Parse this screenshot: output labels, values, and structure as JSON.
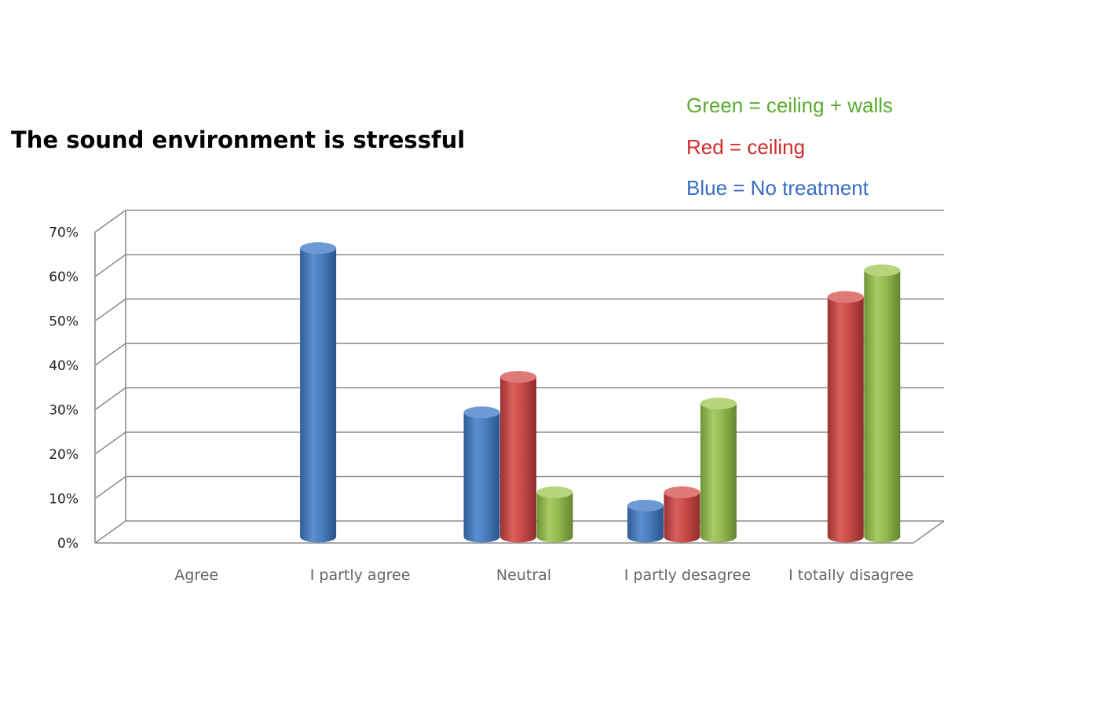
{
  "chart_data": {
    "type": "bar",
    "title": "The sound environment is stressful",
    "categories": [
      "Agree",
      "I partly agree",
      "Neutral",
      "I partly desagree",
      "I totally disagree"
    ],
    "series": [
      {
        "color": "#4a7ebf",
        "values": [
          0,
          65,
          28,
          7,
          0
        ]
      },
      {
        "color": "#c94a47",
        "values": [
          0,
          0,
          36,
          10,
          54
        ]
      },
      {
        "color": "#93b94f",
        "values": [
          0,
          0,
          10,
          30,
          60
        ]
      }
    ],
    "legend_entries": [
      {
        "label": "Green = ceiling + walls",
        "color": "#5aab2e"
      },
      {
        "label": "Red = ceiling",
        "color": "#d42a2a"
      },
      {
        "label": "Blue = No treatment",
        "color": "#3b6dc2"
      }
    ],
    "legend_position": "top-right",
    "y_tick_labels": [
      "0%",
      "10%",
      "20%",
      "30%",
      "40%",
      "50%",
      "60%",
      "70%"
    ],
    "ylim": [
      0,
      70
    ],
    "grid": true,
    "style": "3d-cylinder"
  }
}
